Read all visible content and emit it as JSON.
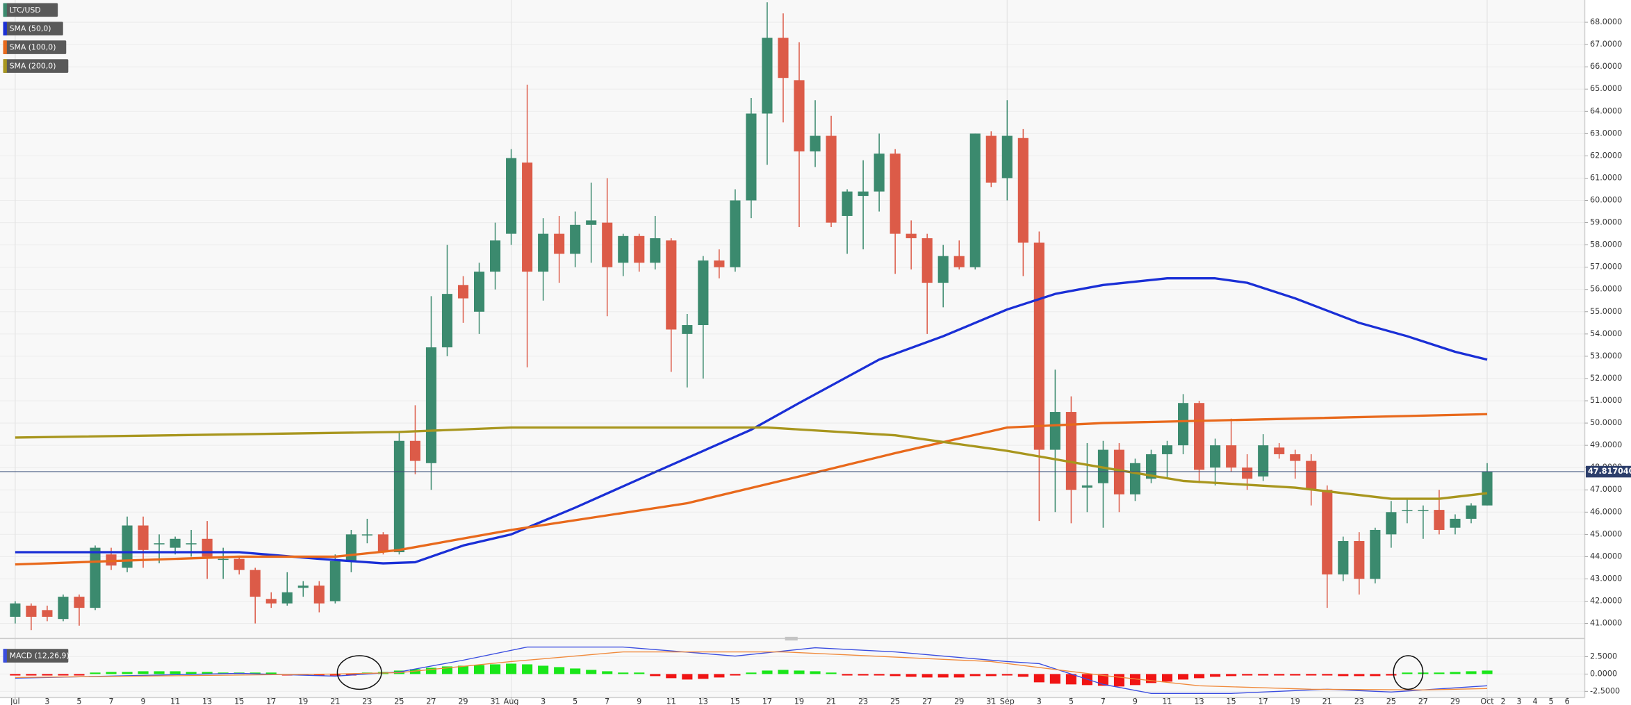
{
  "chart_data": [
    {
      "type": "candlestick",
      "name": "LTC/USD",
      "grid": true,
      "up_color": "#3b8a6e",
      "down_color": "#dc5b48",
      "xlim": [
        -0.95,
        98.1
      ],
      "ylim": [
        40.4,
        69.0
      ],
      "x": [
        0,
        1,
        2,
        3,
        4,
        5,
        6,
        7,
        8,
        9,
        10,
        11,
        12,
        13,
        14,
        15,
        16,
        17,
        18,
        19,
        20,
        21,
        22,
        23,
        24,
        25,
        26,
        27,
        28,
        29,
        30,
        31,
        32,
        33,
        34,
        35,
        36,
        37,
        38,
        39,
        40,
        41,
        42,
        43,
        44,
        45,
        46,
        47,
        48,
        49,
        50,
        51,
        52,
        53,
        54,
        55,
        56,
        57,
        58,
        59,
        60,
        61,
        62,
        63,
        64,
        65,
        66,
        67,
        68,
        69,
        70,
        71,
        72,
        73,
        74,
        75,
        76,
        77,
        78,
        79,
        80,
        81,
        82,
        83,
        84,
        85,
        86,
        87,
        88,
        89,
        90,
        91,
        92
      ],
      "open": [
        41.3,
        41.8,
        41.6,
        41.2,
        42.2,
        41.7,
        44.1,
        43.5,
        45.4,
        44.6,
        44.4,
        44.6,
        44.8,
        43.9,
        43.9,
        43.4,
        42.1,
        41.9,
        42.6,
        42.7,
        42.0,
        43.8,
        45.0,
        45.0,
        44.2,
        49.2,
        48.2,
        53.4,
        56.2,
        55.0,
        56.8,
        58.5,
        61.7,
        56.8,
        58.5,
        57.6,
        58.9,
        59.0,
        57.2,
        58.4,
        57.2,
        58.2,
        54.0,
        54.4,
        57.3,
        57.0,
        60.0,
        63.9,
        67.3,
        65.4,
        62.2,
        62.9,
        59.3,
        60.2,
        60.4,
        62.1,
        58.5,
        58.3,
        56.3,
        57.5,
        57.0,
        62.9,
        61.0,
        62.8,
        58.1,
        48.8,
        50.5,
        47.1,
        47.3,
        48.8,
        46.8,
        47.5,
        48.6,
        49.0,
        50.9,
        48.0,
        49.0,
        48.0,
        47.6,
        48.9,
        48.6,
        48.3,
        47.0,
        43.2,
        44.7,
        43.0,
        45.0,
        46.1,
        46.1,
        46.1,
        45.3,
        45.7,
        46.3
      ],
      "high": [
        42.0,
        41.9,
        41.8,
        42.3,
        42.3,
        44.5,
        44.4,
        45.8,
        45.8,
        45.0,
        44.9,
        45.2,
        45.6,
        44.4,
        44.0,
        43.5,
        42.4,
        43.3,
        42.9,
        42.9,
        44.1,
        45.2,
        45.7,
        45.1,
        49.6,
        50.8,
        55.7,
        58.0,
        56.6,
        57.2,
        59.0,
        62.3,
        65.2,
        59.2,
        59.3,
        59.5,
        60.8,
        61.0,
        58.5,
        58.5,
        59.3,
        58.3,
        54.9,
        57.5,
        57.8,
        60.5,
        64.6,
        68.9,
        68.4,
        67.1,
        64.5,
        63.8,
        60.5,
        61.8,
        63.0,
        62.3,
        59.1,
        58.5,
        58.0,
        58.2,
        63.0,
        63.1,
        64.5,
        63.2,
        58.6,
        52.4,
        51.2,
        49.1,
        49.2,
        49.1,
        48.4,
        48.8,
        49.2,
        51.3,
        51.0,
        49.3,
        50.2,
        48.6,
        49.5,
        49.1,
        48.8,
        48.6,
        47.2,
        44.9,
        45.1,
        45.3,
        46.5,
        46.6,
        46.3,
        47.0,
        45.9,
        46.4,
        48.2
      ],
      "low": [
        41.0,
        40.7,
        41.1,
        41.1,
        40.9,
        41.6,
        43.4,
        43.3,
        43.5,
        43.7,
        44.1,
        44.0,
        43.0,
        43.0,
        43.2,
        41.0,
        41.7,
        41.8,
        42.2,
        41.5,
        41.9,
        43.3,
        44.6,
        44.1,
        44.1,
        47.7,
        47.0,
        53.0,
        54.5,
        54.0,
        56.0,
        58.0,
        52.5,
        55.5,
        56.3,
        57.0,
        57.2,
        54.8,
        56.6,
        56.8,
        56.9,
        52.3,
        51.6,
        52.0,
        56.5,
        56.8,
        59.2,
        61.6,
        63.5,
        58.8,
        61.5,
        58.8,
        57.6,
        57.8,
        59.5,
        56.7,
        56.9,
        54.0,
        55.2,
        56.9,
        56.9,
        60.6,
        60.0,
        56.6,
        45.6,
        46.0,
        45.5,
        46.0,
        45.3,
        46.0,
        46.5,
        47.3,
        47.5,
        48.6,
        47.3,
        47.2,
        47.8,
        47.0,
        47.4,
        48.4,
        47.5,
        46.3,
        41.7,
        42.9,
        42.3,
        42.8,
        44.4,
        45.5,
        44.8,
        45.0,
        45.0,
        45.5,
        46.3
      ],
      "close": [
        41.9,
        41.3,
        41.3,
        42.2,
        41.7,
        44.4,
        43.6,
        45.4,
        44.3,
        44.6,
        44.8,
        44.6,
        44.0,
        43.9,
        43.4,
        42.2,
        41.9,
        42.4,
        42.7,
        41.9,
        43.8,
        45.0,
        45.0,
        44.2,
        49.2,
        48.3,
        53.4,
        55.8,
        55.6,
        56.8,
        58.2,
        61.9,
        56.8,
        58.5,
        57.6,
        58.9,
        59.1,
        57.0,
        58.4,
        57.2,
        58.3,
        54.2,
        54.4,
        57.3,
        57.0,
        60.0,
        63.9,
        67.3,
        65.5,
        62.2,
        62.9,
        59.0,
        60.4,
        60.4,
        62.1,
        58.5,
        58.3,
        56.3,
        57.5,
        57.0,
        63.0,
        60.8,
        62.9,
        58.1,
        48.8,
        50.5,
        47.0,
        47.2,
        48.8,
        46.8,
        48.2,
        48.6,
        49.0,
        50.9,
        47.9,
        49.0,
        48.0,
        47.5,
        49.0,
        48.6,
        48.3,
        47.0,
        43.2,
        44.7,
        43.0,
        45.2,
        46.0,
        46.1,
        46.1,
        45.2,
        45.7,
        46.3,
        47.81704
      ],
      "overlays": [
        {
          "name": "SMA (50,0)",
          "color": "#1a2fd6",
          "x": [
            0,
            14,
            19,
            23,
            25,
            28,
            31,
            35,
            40,
            46,
            49,
            54,
            58,
            62,
            65,
            68,
            72,
            75,
            77,
            80,
            84,
            87,
            90,
            92
          ],
          "values": [
            44.2,
            44.2,
            43.9,
            43.7,
            43.75,
            44.5,
            45.0,
            46.2,
            47.8,
            49.7,
            50.9,
            52.85,
            53.9,
            55.1,
            55.8,
            56.2,
            56.5,
            56.5,
            56.3,
            55.6,
            54.5,
            53.9,
            53.2,
            52.85
          ]
        },
        {
          "name": "SMA (100,0)",
          "color": "#e8691c",
          "x": [
            0,
            14,
            20,
            24,
            31,
            42,
            49,
            55,
            62,
            68,
            80,
            92
          ],
          "values": [
            43.65,
            44.0,
            44.0,
            44.3,
            45.2,
            46.4,
            47.6,
            48.65,
            49.8,
            50.0,
            50.2,
            50.4
          ]
        },
        {
          "name": "SMA (200,0)",
          "color": "#a8961e",
          "x": [
            0,
            24,
            31,
            47,
            55,
            62,
            68,
            73,
            80,
            86,
            89,
            92
          ],
          "values": [
            49.35,
            49.6,
            49.8,
            49.8,
            49.45,
            48.75,
            48.0,
            47.4,
            47.1,
            46.6,
            46.6,
            46.85
          ]
        }
      ],
      "last_price": {
        "value": 47.81704,
        "label": "47.817040"
      },
      "yticks": [
        {
          "value": 41,
          "label": "41.0000"
        },
        {
          "value": 42,
          "label": "42.0000"
        },
        {
          "value": 43,
          "label": "43.0000"
        },
        {
          "value": 44,
          "label": "44.0000"
        },
        {
          "value": 45,
          "label": "45.0000"
        },
        {
          "value": 46,
          "label": "46.0000"
        },
        {
          "value": 47,
          "label": "47.0000"
        },
        {
          "value": 48,
          "label": "48.0000"
        },
        {
          "value": 49,
          "label": "49.0000"
        },
        {
          "value": 50,
          "label": "50.0000"
        },
        {
          "value": 51,
          "label": "51.0000"
        },
        {
          "value": 52,
          "label": "52.0000"
        },
        {
          "value": 53,
          "label": "53.0000"
        },
        {
          "value": 54,
          "label": "54.0000"
        },
        {
          "value": 55,
          "label": "55.0000"
        },
        {
          "value": 56,
          "label": "56.0000"
        },
        {
          "value": 57,
          "label": "57.0000"
        },
        {
          "value": 58,
          "label": "58.0000"
        },
        {
          "value": 59,
          "label": "59.0000"
        },
        {
          "value": 60,
          "label": "60.0000"
        },
        {
          "value": 61,
          "label": "61.0000"
        },
        {
          "value": 62,
          "label": "62.0000"
        },
        {
          "value": 63,
          "label": "63.0000"
        },
        {
          "value": 64,
          "label": "64.0000"
        },
        {
          "value": 65,
          "label": "65.0000"
        },
        {
          "value": 66,
          "label": "66.0000"
        },
        {
          "value": 67,
          "label": "67.0000"
        },
        {
          "value": 68,
          "label": "68.0000"
        }
      ]
    },
    {
      "type": "macd",
      "name": "MACD (12,26,9)",
      "xlim": [
        -0.95,
        98.1
      ],
      "ylim": [
        -3.4,
        5.0
      ],
      "histogram": {
        "up_color": "#19e619",
        "down_color": "#f01414",
        "values": [
          -0.2,
          -0.2,
          -0.2,
          -0.2,
          -0.1,
          0.2,
          0.3,
          0.3,
          0.4,
          0.4,
          0.4,
          0.3,
          0.3,
          0.2,
          0.2,
          0.1,
          0.1,
          -0.1,
          -0.1,
          -0.2,
          -0.2,
          -0.1,
          0.1,
          0.3,
          0.5,
          0.7,
          0.9,
          1.1,
          1.2,
          1.3,
          1.4,
          1.5,
          1.4,
          1.2,
          1.0,
          0.8,
          0.6,
          0.4,
          0.2,
          0.1,
          -0.3,
          -0.6,
          -0.8,
          -0.7,
          -0.5,
          -0.2,
          0.2,
          0.5,
          0.6,
          0.5,
          0.4,
          0.2,
          -0.1,
          -0.2,
          -0.2,
          -0.3,
          -0.4,
          -0.5,
          -0.5,
          -0.5,
          -0.3,
          -0.3,
          -0.2,
          -0.4,
          -1.2,
          -1.4,
          -1.5,
          -1.6,
          -1.7,
          -1.8,
          -1.6,
          -1.3,
          -1.1,
          -0.8,
          -0.6,
          -0.4,
          -0.3,
          -0.2,
          -0.1,
          -0.1,
          -0.1,
          -0.1,
          -0.2,
          -0.3,
          -0.3,
          -0.3,
          -0.2,
          0.1,
          0.2,
          0.2,
          0.3,
          0.4,
          0.5
        ]
      },
      "lines": [
        {
          "color": "#3a4de0",
          "x": [
            0,
            14,
            20,
            24,
            28,
            32,
            38,
            45,
            50,
            55,
            62,
            64,
            68,
            71,
            76,
            82,
            86,
            92
          ],
          "values": [
            -0.6,
            0.1,
            -0.3,
            0.3,
            2.0,
            3.9,
            3.9,
            2.6,
            3.8,
            3.2,
            1.8,
            1.5,
            -1.5,
            -2.8,
            -2.8,
            -2.2,
            -2.6,
            -1.7
          ]
        },
        {
          "color": "#f08a3c",
          "x": [
            0,
            20,
            24,
            31,
            38,
            48,
            61,
            68,
            74,
            81,
            88,
            92
          ],
          "values": [
            -0.5,
            0.0,
            0.2,
            1.8,
            3.2,
            3.2,
            1.8,
            -0.2,
            -1.7,
            -2.2,
            -2.3,
            -2.1
          ]
        }
      ],
      "yticks": [
        {
          "value": 2.5,
          "label": "2.5000"
        },
        {
          "value": 0,
          "label": "0.0000"
        },
        {
          "value": -2.5,
          "label": "-2.5000"
        }
      ],
      "xticks": [
        {
          "value": 0,
          "label": "Jul"
        },
        {
          "value": 2,
          "label": "3"
        },
        {
          "value": 4,
          "label": "5"
        },
        {
          "value": 6,
          "label": "7"
        },
        {
          "value": 8,
          "label": "9"
        },
        {
          "value": 10,
          "label": "11"
        },
        {
          "value": 12,
          "label": "13"
        },
        {
          "value": 14,
          "label": "15"
        },
        {
          "value": 16,
          "label": "17"
        },
        {
          "value": 18,
          "label": "19"
        },
        {
          "value": 20,
          "label": "21"
        },
        {
          "value": 22,
          "label": "23"
        },
        {
          "value": 24,
          "label": "25"
        },
        {
          "value": 26,
          "label": "27"
        },
        {
          "value": 28,
          "label": "29"
        },
        {
          "value": 30,
          "label": "31"
        },
        {
          "value": 31,
          "label": "Aug"
        },
        {
          "value": 33,
          "label": "3"
        },
        {
          "value": 35,
          "label": "5"
        },
        {
          "value": 37,
          "label": "7"
        },
        {
          "value": 39,
          "label": "9"
        },
        {
          "value": 41,
          "label": "11"
        },
        {
          "value": 43,
          "label": "13"
        },
        {
          "value": 45,
          "label": "15"
        },
        {
          "value": 47,
          "label": "17"
        },
        {
          "value": 49,
          "label": "19"
        },
        {
          "value": 51,
          "label": "21"
        },
        {
          "value": 53,
          "label": "23"
        },
        {
          "value": 55,
          "label": "25"
        },
        {
          "value": 57,
          "label": "27"
        },
        {
          "value": 59,
          "label": "29"
        },
        {
          "value": 61,
          "label": "31"
        },
        {
          "value": 62,
          "label": "Sep"
        },
        {
          "value": 64,
          "label": "3"
        },
        {
          "value": 66,
          "label": "5"
        },
        {
          "value": 68,
          "label": "7"
        },
        {
          "value": 70,
          "label": "9"
        },
        {
          "value": 72,
          "label": "11"
        },
        {
          "value": 74,
          "label": "13"
        },
        {
          "value": 76,
          "label": "15"
        },
        {
          "value": 78,
          "label": "17"
        },
        {
          "value": 80,
          "label": "19"
        },
        {
          "value": 82,
          "label": "21"
        },
        {
          "value": 84,
          "label": "23"
        },
        {
          "value": 86,
          "label": "25"
        },
        {
          "value": 88,
          "label": "27"
        },
        {
          "value": 90,
          "label": "29"
        },
        {
          "value": 92,
          "label": "Oct"
        },
        {
          "value": 93,
          "label": "2"
        },
        {
          "value": 94,
          "label": "3"
        },
        {
          "value": 95,
          "label": "4"
        },
        {
          "value": 96,
          "label": "5"
        },
        {
          "value": 97,
          "label": "6"
        }
      ]
    }
  ]
}
